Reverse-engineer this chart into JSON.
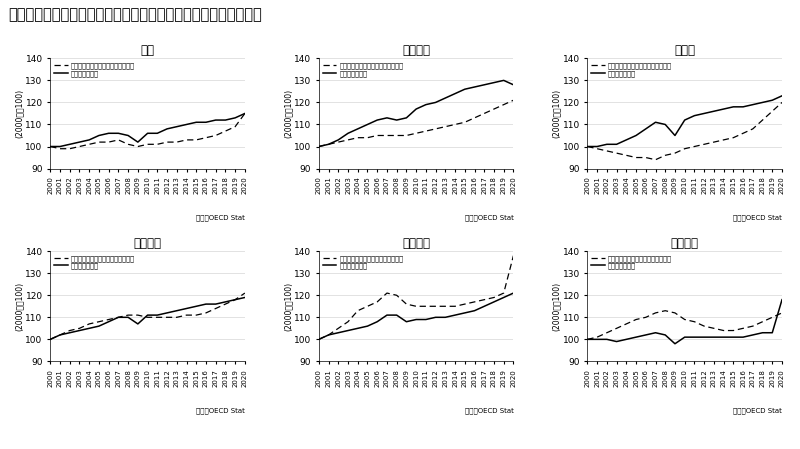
{
  "title": "国別一人一時間当たりの実質雇用者報酬と物的労働生産性の推移",
  "legend_dashed": "一人一時間あたりの実質雇用者報酬",
  "legend_solid": "物的労働生産性",
  "ylabel": "(2000年＝100)",
  "source": "出典：OECD Stat",
  "years": [
    2000,
    2001,
    2002,
    2003,
    2004,
    2005,
    2006,
    2007,
    2008,
    2009,
    2010,
    2011,
    2012,
    2013,
    2014,
    2015,
    2016,
    2017,
    2018,
    2019,
    2020
  ],
  "countries": [
    "日本",
    "アメリカ",
    "ドイツ",
    "フランス",
    "イギリス",
    "イタリア"
  ],
  "compensation": {
    "日本": [
      100,
      99,
      99,
      100,
      101,
      102,
      102,
      103,
      101,
      100,
      101,
      101,
      102,
      102,
      103,
      103,
      104,
      105,
      107,
      109,
      115
    ],
    "アメリカ": [
      100,
      101,
      102,
      103,
      104,
      104,
      105,
      105,
      105,
      105,
      106,
      107,
      108,
      109,
      110,
      111,
      113,
      115,
      117,
      119,
      121
    ],
    "ドイツ": [
      100,
      99,
      98,
      97,
      96,
      95,
      95,
      94,
      96,
      97,
      99,
      100,
      101,
      102,
      103,
      104,
      106,
      108,
      112,
      116,
      120
    ],
    "フランス": [
      100,
      102,
      104,
      105,
      107,
      108,
      109,
      110,
      111,
      111,
      110,
      110,
      110,
      110,
      111,
      111,
      112,
      114,
      116,
      118,
      121
    ],
    "イギリス": [
      100,
      102,
      105,
      108,
      113,
      115,
      117,
      121,
      120,
      116,
      115,
      115,
      115,
      115,
      115,
      116,
      117,
      118,
      119,
      121,
      138
    ],
    "イタリア": [
      100,
      101,
      103,
      105,
      107,
      109,
      110,
      112,
      113,
      112,
      109,
      108,
      106,
      105,
      104,
      104,
      105,
      106,
      108,
      110,
      112
    ]
  },
  "productivity": {
    "日本": [
      100,
      100,
      101,
      102,
      103,
      105,
      106,
      106,
      105,
      102,
      106,
      106,
      108,
      109,
      110,
      111,
      111,
      112,
      112,
      113,
      115
    ],
    "アメリカ": [
      100,
      101,
      103,
      106,
      108,
      110,
      112,
      113,
      112,
      113,
      117,
      119,
      120,
      122,
      124,
      126,
      127,
      128,
      129,
      130,
      128
    ],
    "ドイツ": [
      100,
      100,
      101,
      101,
      103,
      105,
      108,
      111,
      110,
      105,
      112,
      114,
      115,
      116,
      117,
      118,
      118,
      119,
      120,
      121,
      123
    ],
    "フランス": [
      100,
      102,
      103,
      104,
      105,
      106,
      108,
      110,
      110,
      107,
      111,
      111,
      112,
      113,
      114,
      115,
      116,
      116,
      117,
      118,
      119
    ],
    "イギリス": [
      100,
      102,
      103,
      104,
      105,
      106,
      108,
      111,
      111,
      108,
      109,
      109,
      110,
      110,
      111,
      112,
      113,
      115,
      117,
      119,
      121
    ],
    "イタリア": [
      100,
      100,
      100,
      99,
      100,
      101,
      102,
      103,
      102,
      98,
      101,
      101,
      101,
      101,
      101,
      101,
      101,
      102,
      103,
      103,
      118
    ]
  },
  "ylim": [
    90,
    140
  ],
  "yticks": [
    90,
    100,
    110,
    120,
    130,
    140
  ]
}
